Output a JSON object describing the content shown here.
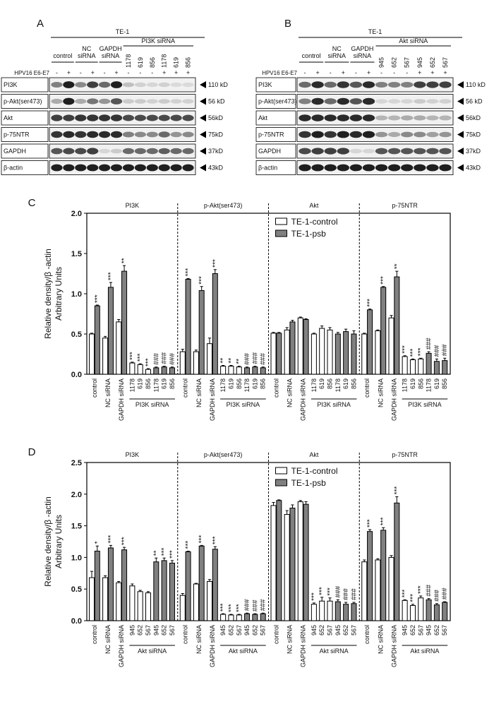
{
  "blots": [
    {
      "label": "A",
      "cell_line": "TE-1",
      "groups": [
        [
          "control"
        ],
        [
          "NC",
          "siRNA"
        ],
        [
          "GAPDH",
          "siRNA"
        ],
        [
          "PI3K siRNA"
        ]
      ],
      "lanes": [
        "1178",
        "619",
        "856",
        "1178",
        "619",
        "856"
      ],
      "treatment": "HPV16 E6-E7",
      "signs": [
        "-",
        "+",
        "-",
        "+",
        "-",
        "+",
        "-",
        "-",
        "-",
        "+",
        "+",
        "+"
      ],
      "rows": [
        {
          "name": "PI3K",
          "size": "110 kD"
        },
        {
          "name": "p-Akt(ser473)",
          "size": "56 kD"
        },
        {
          "name": "Akt",
          "size": "56kD"
        },
        {
          "name": "p-75NTR",
          "size": "75kD"
        },
        {
          "name": "GAPDH",
          "size": "37kD"
        },
        {
          "name": "β-actin",
          "size": "43kD"
        }
      ]
    },
    {
      "label": "B",
      "cell_line": "TE-1",
      "groups": [
        [
          "control"
        ],
        [
          "NC",
          "siRNA"
        ],
        [
          "GAPDH",
          "siRNA"
        ],
        [
          "Akt siRNA"
        ]
      ],
      "lanes": [
        "945",
        "652",
        "567",
        "945",
        "652",
        "567"
      ],
      "treatment": "HPV16 E6-E7",
      "signs": [
        "-",
        "+",
        "-",
        "+",
        "-",
        "+",
        "-",
        "-",
        "-",
        "+",
        "+",
        "+"
      ],
      "rows": [
        {
          "name": "PI3K",
          "size": "110 kD"
        },
        {
          "name": "p-Akt(ser473)",
          "size": "56 kD"
        },
        {
          "name": "Akt",
          "size": "56kD"
        },
        {
          "name": "p-75NTR",
          "size": "75kD"
        },
        {
          "name": "GAPDH",
          "size": "37kD"
        },
        {
          "name": "β-actin",
          "size": "43kD"
        }
      ]
    }
  ],
  "chart_data": [
    {
      "type": "bar",
      "label": "C",
      "ylabel": [
        "Relative density/β -actin",
        "Arbitrary Units"
      ],
      "ylim": [
        0,
        2
      ],
      "yticks": [
        {
          "value": 0,
          "label": "0.0"
        },
        0.5,
        {
          "value": 1,
          "label": "1.0"
        },
        1.5,
        {
          "value": 2,
          "label": "2.0"
        }
      ],
      "series": [
        {
          "name": "TE-1-control",
          "color": "#ffffff"
        },
        {
          "name": "TE-1-psb",
          "color": "#808080"
        }
      ],
      "groups": [
        {
          "title": "PI3K",
          "categories": [
            "control",
            "NC siRNA",
            "GAPDH siRNA",
            "1178",
            "619",
            "856",
            "1178",
            "619",
            "856"
          ],
          "subgroup": "PI3K siRNA",
          "series": [
            {
              "values": [
                0.5,
                0.45,
                0.65,
                0.14,
                0.12,
                0.06,
                null,
                null,
                null
              ],
              "errors": [
                0.01,
                0.02,
                0.03,
                0.01,
                0.01,
                0.01,
                null,
                null,
                null
              ],
              "annotations": [
                null,
                null,
                null,
                "***",
                "***",
                "***",
                null,
                null,
                null
              ]
            },
            {
              "values": [
                0.85,
                1.08,
                1.28,
                null,
                null,
                null,
                0.08,
                0.09,
                0.08
              ],
              "errors": [
                0.01,
                0.06,
                0.07,
                null,
                null,
                null,
                0.01,
                0.01,
                0.01
              ],
              "annotations": [
                "***",
                "***",
                "**",
                null,
                null,
                null,
                "###",
                "###",
                "###"
              ]
            }
          ]
        },
        {
          "title": "p-Akt(ser473)",
          "categories": [
            "control",
            "NC siRNA",
            "GAPDH siRNA",
            "1178",
            "619",
            "856",
            "1178",
            "619",
            "856"
          ],
          "subgroup": "PI3K siRNA",
          "series": [
            {
              "values": [
                0.28,
                0.28,
                0.38,
                0.1,
                0.1,
                0.09,
                null,
                null,
                null
              ],
              "errors": [
                0.03,
                0.02,
                0.07,
                0.01,
                0.01,
                0.01,
                null,
                null,
                null
              ],
              "annotations": [
                null,
                null,
                null,
                "**",
                "**",
                "**",
                null,
                null,
                null
              ]
            },
            {
              "values": [
                1.18,
                1.04,
                1.25,
                null,
                null,
                null,
                0.08,
                0.09,
                0.08
              ],
              "errors": [
                0.01,
                0.05,
                0.05,
                null,
                null,
                null,
                0.01,
                0.01,
                0.01
              ],
              "annotations": [
                "***",
                "***",
                "***",
                null,
                null,
                null,
                "###",
                "###",
                "###"
              ]
            }
          ]
        },
        {
          "title": "Akt",
          "categories": [
            "control",
            "NC siRNA",
            "GAPDH siRNA",
            "1178",
            "619",
            "856",
            "1178",
            "619",
            "856"
          ],
          "subgroup": "PI3K siRNA",
          "series": [
            {
              "values": [
                0.51,
                0.55,
                0.7,
                0.5,
                0.57,
                0.55,
                null,
                null,
                null
              ],
              "errors": [
                0.01,
                0.03,
                0.01,
                0.01,
                0.03,
                0.03,
                null,
                null,
                null
              ],
              "annotations": [
                null,
                null,
                null,
                null,
                null,
                null,
                null,
                null,
                null
              ]
            },
            {
              "values": [
                0.51,
                0.65,
                0.68,
                null,
                null,
                null,
                0.5,
                0.53,
                0.5
              ],
              "errors": [
                0.01,
                0.02,
                0.01,
                null,
                null,
                null,
                0.02,
                0.03,
                0.04
              ],
              "annotations": [
                null,
                null,
                null,
                null,
                null,
                null,
                null,
                null,
                null
              ]
            }
          ]
        },
        {
          "title": "p-75NTR",
          "categories": [
            "control",
            "NC siRNA",
            "GAPDH siRNA",
            "1178",
            "619",
            "856",
            "1178",
            "619",
            "856"
          ],
          "subgroup": "PI3K siRNA",
          "series": [
            {
              "values": [
                0.5,
                0.54,
                0.7,
                0.22,
                0.18,
                0.19,
                null,
                null,
                null
              ],
              "errors": [
                0.01,
                0.01,
                0.03,
                0.01,
                0.01,
                0.01,
                null,
                null,
                null
              ],
              "annotations": [
                null,
                null,
                null,
                "***",
                "***",
                "***",
                null,
                null,
                null
              ]
            },
            {
              "values": [
                0.8,
                1.08,
                1.21,
                null,
                null,
                null,
                0.26,
                0.16,
                0.17
              ],
              "errors": [
                0.01,
                0.01,
                0.07,
                null,
                null,
                null,
                0.02,
                0.03,
                0.03
              ],
              "annotations": [
                "***",
                "***",
                "**",
                null,
                null,
                null,
                "###",
                "###",
                "###"
              ]
            }
          ]
        }
      ]
    },
    {
      "type": "bar",
      "label": "D",
      "ylabel": [
        "Relative density/β -actin",
        "Arbitrary Units"
      ],
      "ylim": [
        0,
        2.5
      ],
      "yticks": [
        {
          "value": 0,
          "label": "0.0"
        },
        0.5,
        {
          "value": 1,
          "label": "1.0"
        },
        1.5,
        {
          "value": 2,
          "label": "2.0"
        },
        2.5
      ],
      "series": [
        {
          "name": "TE-1-control",
          "color": "#ffffff"
        },
        {
          "name": "TE-1-psb",
          "color": "#808080"
        }
      ],
      "groups": [
        {
          "title": "PI3K",
          "categories": [
            "control",
            "NC siRNA",
            "GAPDH siRNA",
            "945",
            "652",
            "567",
            "945",
            "652",
            "567"
          ],
          "subgroup": "Akt siRNA",
          "series": [
            {
              "values": [
                0.68,
                0.68,
                0.6,
                0.55,
                0.46,
                0.44,
                null,
                null,
                null
              ],
              "errors": [
                0.1,
                0.03,
                0.02,
                0.03,
                0.02,
                0.02,
                null,
                null,
                null
              ],
              "annotations": [
                null,
                null,
                null,
                null,
                null,
                null,
                null,
                null,
                null
              ]
            },
            {
              "values": [
                1.1,
                1.15,
                1.12,
                null,
                null,
                null,
                0.93,
                0.95,
                0.91
              ],
              "errors": [
                0.08,
                0.04,
                0.04,
                null,
                null,
                null,
                0.06,
                0.04,
                0.04
              ],
              "annotations": [
                "*",
                "***",
                "***",
                null,
                null,
                null,
                "**",
                "***",
                "***"
              ]
            }
          ]
        },
        {
          "title": "p-Akt(ser473)",
          "categories": [
            "control",
            "NC siRNA",
            "GAPDH siRNA",
            "945",
            "652",
            "567",
            "945",
            "652",
            "567"
          ],
          "subgroup": "Akt siRNA",
          "series": [
            {
              "values": [
                0.4,
                0.58,
                0.62,
                0.1,
                0.09,
                0.09,
                null,
                null,
                null
              ],
              "errors": [
                0.03,
                0.01,
                0.03,
                0.01,
                0.01,
                0.01,
                null,
                null,
                null
              ],
              "annotations": [
                null,
                null,
                null,
                "***",
                "***",
                "***",
                null,
                null,
                null
              ]
            },
            {
              "values": [
                1.09,
                1.18,
                1.13,
                null,
                null,
                null,
                0.11,
                0.1,
                0.11
              ],
              "errors": [
                0.01,
                0.01,
                0.04,
                null,
                null,
                null,
                0.01,
                0.01,
                0.01
              ],
              "annotations": [
                "***",
                "***",
                "***",
                null,
                null,
                null,
                "###",
                "###",
                "###"
              ]
            }
          ]
        },
        {
          "title": "Akt",
          "categories": [
            "control",
            "NC siRNA",
            "GAPDH siRNA",
            "945",
            "652",
            "567",
            "945",
            "652",
            "567"
          ],
          "subgroup": "Akt siRNA",
          "series": [
            {
              "values": [
                1.82,
                1.68,
                1.88,
                0.26,
                0.31,
                0.31,
                null,
                null,
                null
              ],
              "errors": [
                0.05,
                0.06,
                0.02,
                0.02,
                0.06,
                0.05,
                null,
                null,
                null
              ],
              "annotations": [
                null,
                null,
                null,
                "***",
                "***",
                "***",
                null,
                null,
                null
              ]
            },
            {
              "values": [
                1.9,
                1.78,
                1.84,
                null,
                null,
                null,
                0.3,
                0.26,
                0.27
              ],
              "errors": [
                0.01,
                0.05,
                0.04,
                null,
                null,
                null,
                0.03,
                0.03,
                0.02
              ],
              "annotations": [
                null,
                null,
                null,
                null,
                null,
                null,
                "###",
                "###",
                "###"
              ]
            }
          ]
        },
        {
          "title": "p-75NTR",
          "categories": [
            "control",
            "NC siRNA",
            "GAPDH siRNA",
            "945",
            "652",
            "567",
            "945",
            "652",
            "567"
          ],
          "subgroup": "Akt siRNA",
          "series": [
            {
              "values": [
                0.93,
                0.96,
                1.0,
                0.32,
                0.24,
                0.36,
                null,
                null,
                null
              ],
              "errors": [
                0.03,
                0.02,
                0.03,
                0.01,
                0.02,
                0.03,
                null,
                null,
                null
              ],
              "annotations": [
                null,
                null,
                null,
                "***",
                "***",
                "***",
                null,
                null,
                null
              ]
            },
            {
              "values": [
                1.41,
                1.43,
                1.86,
                null,
                null,
                null,
                0.33,
                0.25,
                0.29
              ],
              "errors": [
                0.03,
                0.04,
                0.1,
                null,
                null,
                null,
                0.02,
                0.02,
                0.01
              ],
              "annotations": [
                "***",
                "***",
                "***",
                null,
                null,
                null,
                "###",
                "###",
                "###"
              ]
            }
          ]
        }
      ]
    }
  ]
}
